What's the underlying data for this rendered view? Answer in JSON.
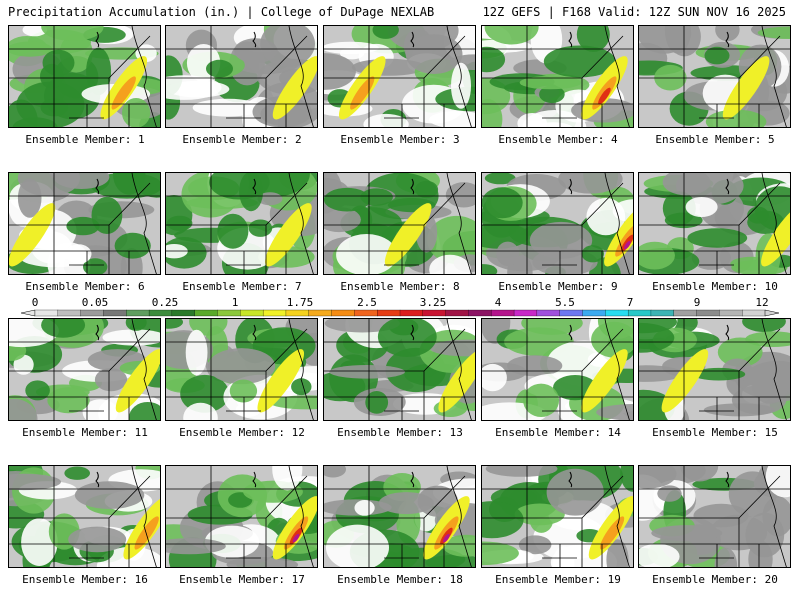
{
  "header": {
    "title": "Precipitation Accumulation (in.) | College of DuPage NEXLAB",
    "run_info": "12Z GEFS | F168 Valid: 12Z SUN NOV 16 2025"
  },
  "colors": {
    "none": "#ffffff",
    "trace": "#c8c8c8",
    "light": "#969696",
    "grn_light": "#6dbf5a",
    "grn_dark": "#2d8c2d",
    "yellow": "#f0f028",
    "orange": "#f5a01e",
    "red": "#e03014",
    "magenta": "#b4148c"
  },
  "colorbar": {
    "tick_labels": [
      "0",
      "0.05",
      "0.25",
      "1",
      "1.75",
      "2.5",
      "3.25",
      "4",
      "5.5",
      "7",
      "9",
      "12"
    ],
    "colors": [
      "#e6e6e6",
      "#bebebe",
      "#9b9b9b",
      "#787878",
      "#5f9e5f",
      "#3c8c3c",
      "#2a7a2a",
      "#5aaa2a",
      "#8cc83c",
      "#c8e628",
      "#f0f028",
      "#f5d21e",
      "#f5aa1e",
      "#f58c14",
      "#f0641e",
      "#e63c14",
      "#dc1e1e",
      "#c81432",
      "#a01446",
      "#8c1464",
      "#b4148c",
      "#c828c8",
      "#a050dc",
      "#6e78f0",
      "#3caaf0",
      "#28dcf0",
      "#28c8c8",
      "#3cb4b4",
      "#a0a0a0",
      "#8c8c8c",
      "#b4b4b4",
      "#d2d2d2"
    ]
  },
  "panels": [
    {
      "label": "Ensemble Member: 1"
    },
    {
      "label": "Ensemble Member: 2"
    },
    {
      "label": "Ensemble Member: 3"
    },
    {
      "label": "Ensemble Member: 4"
    },
    {
      "label": "Ensemble Member: 5"
    },
    {
      "label": "Ensemble Member: 6"
    },
    {
      "label": "Ensemble Member: 7"
    },
    {
      "label": "Ensemble Member: 8"
    },
    {
      "label": "Ensemble Member: 9"
    },
    {
      "label": "Ensemble Member: 10"
    },
    {
      "label": "Ensemble Member: 11"
    },
    {
      "label": "Ensemble Member: 12"
    },
    {
      "label": "Ensemble Member: 13"
    },
    {
      "label": "Ensemble Member: 14"
    },
    {
      "label": "Ensemble Member: 15"
    },
    {
      "label": "Ensemble Member: 16"
    },
    {
      "label": "Ensemble Member: 17"
    },
    {
      "label": "Ensemble Member: 18"
    },
    {
      "label": "Ensemble Member: 19"
    },
    {
      "label": "Ensemble Member: 20"
    }
  ]
}
